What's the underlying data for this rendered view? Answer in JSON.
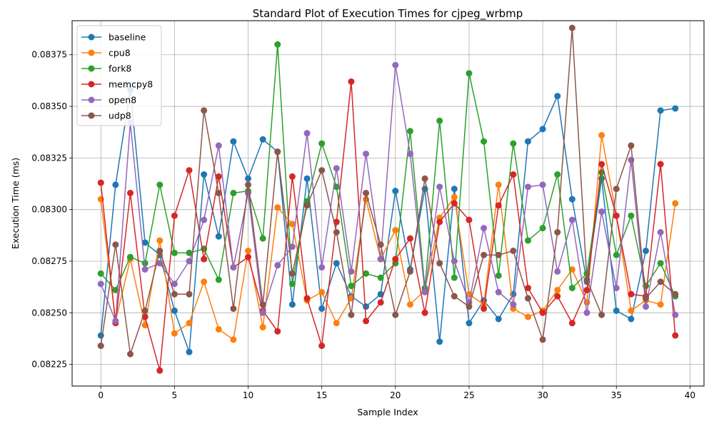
{
  "chart_data": {
    "type": "line",
    "title": "Standard Plot of Execution Times for cjpeg_wrbmp",
    "xlabel": "Sample Index",
    "ylabel": "Execution Time (ms)",
    "xlim": [
      -1.95,
      40.95
    ],
    "ylim": [
      0.082145,
      0.083915
    ],
    "x_ticks": [
      0,
      5,
      10,
      15,
      20,
      25,
      30,
      35,
      40
    ],
    "y_ticks": [
      0.08225,
      0.0825,
      0.08275,
      0.083,
      0.08325,
      0.0835,
      0.08375
    ],
    "y_tick_labels": [
      "0.08225",
      "0.08250",
      "0.08275",
      "0.08300",
      "0.08325",
      "0.08350",
      "0.08375"
    ],
    "grid": true,
    "legend_position": "top-left",
    "x": [
      0,
      1,
      2,
      3,
      4,
      5,
      6,
      7,
      8,
      9,
      10,
      11,
      12,
      13,
      14,
      15,
      16,
      17,
      18,
      19,
      20,
      21,
      22,
      23,
      24,
      25,
      26,
      27,
      28,
      29,
      30,
      31,
      32,
      33,
      34,
      35,
      36,
      37,
      38,
      39
    ],
    "series": [
      {
        "name": "baseline",
        "color": "#1f77b4",
        "values": [
          0.08239,
          0.08312,
          0.08358,
          0.08284,
          0.08278,
          0.08251,
          0.08231,
          0.08317,
          0.08287,
          0.08333,
          0.08315,
          0.08334,
          0.08328,
          0.08254,
          0.08315,
          0.08252,
          0.08274,
          0.08258,
          0.08253,
          0.08259,
          0.08309,
          0.08271,
          0.0831,
          0.08236,
          0.0831,
          0.08245,
          0.08256,
          0.08247,
          0.08259,
          0.08333,
          0.08339,
          0.08355,
          0.08305,
          0.08265,
          0.08315,
          0.08251,
          0.08247,
          0.0828,
          0.08348,
          0.08349
        ]
      },
      {
        "name": "cpu8",
        "color": "#ff7f0e",
        "values": [
          0.08305,
          0.08246,
          0.08276,
          0.08244,
          0.08285,
          0.0824,
          0.08245,
          0.08265,
          0.08242,
          0.08237,
          0.0828,
          0.08243,
          0.08301,
          0.08293,
          0.08256,
          0.0826,
          0.08245,
          0.08257,
          0.08305,
          0.08276,
          0.0829,
          0.08254,
          0.08261,
          0.08296,
          0.08306,
          0.08259,
          0.08254,
          0.08312,
          0.08252,
          0.08248,
          0.08251,
          0.08261,
          0.08271,
          0.08255,
          0.08336,
          0.08297,
          0.08251,
          0.08256,
          0.08254,
          0.08303
        ]
      },
      {
        "name": "fork8",
        "color": "#2ca02c",
        "values": [
          0.08269,
          0.08261,
          0.08277,
          0.08274,
          0.08312,
          0.08279,
          0.08279,
          0.08281,
          0.08266,
          0.08308,
          0.08309,
          0.08286,
          0.0838,
          0.08264,
          0.08304,
          0.08332,
          0.08311,
          0.08263,
          0.08269,
          0.08267,
          0.08274,
          0.08338,
          0.08262,
          0.08343,
          0.08267,
          0.08366,
          0.08333,
          0.08268,
          0.08332,
          0.08285,
          0.08291,
          0.08317,
          0.08262,
          0.08269,
          0.08318,
          0.08278,
          0.08297,
          0.08263,
          0.08274,
          0.08258
        ]
      },
      {
        "name": "memcpy8",
        "color": "#d62728",
        "values": [
          0.08313,
          0.08245,
          0.08308,
          0.08248,
          0.08222,
          0.08297,
          0.08319,
          0.08276,
          0.08316,
          0.08272,
          0.08277,
          0.08251,
          0.08241,
          0.08316,
          0.08257,
          0.08234,
          0.08294,
          0.08362,
          0.08246,
          0.08255,
          0.08276,
          0.08286,
          0.0825,
          0.08294,
          0.08303,
          0.08295,
          0.08252,
          0.08302,
          0.08317,
          0.08262,
          0.0825,
          0.08258,
          0.08245,
          0.08261,
          0.08322,
          0.08297,
          0.08259,
          0.08258,
          0.08322,
          0.08239
        ]
      },
      {
        "name": "open8",
        "color": "#9467bd",
        "values": [
          0.08264,
          0.08246,
          0.08342,
          0.08271,
          0.08274,
          0.08264,
          0.08275,
          0.08295,
          0.08331,
          0.08272,
          0.08308,
          0.0825,
          0.08273,
          0.08282,
          0.08337,
          0.08272,
          0.0832,
          0.0827,
          0.08327,
          0.08276,
          0.0837,
          0.08327,
          0.0826,
          0.08311,
          0.08275,
          0.08255,
          0.08291,
          0.0826,
          0.08254,
          0.08311,
          0.08312,
          0.0827,
          0.08295,
          0.0825,
          0.08299,
          0.08262,
          0.08324,
          0.08253,
          0.08289,
          0.08249
        ]
      },
      {
        "name": "udp8",
        "color": "#8c564b",
        "values": [
          0.08234,
          0.08283,
          0.0823,
          0.08251,
          0.0828,
          0.08259,
          0.08259,
          0.08348,
          0.08308,
          0.08252,
          0.08312,
          0.08254,
          0.08328,
          0.08269,
          0.08302,
          0.08319,
          0.08289,
          0.08249,
          0.08308,
          0.08283,
          0.08249,
          0.0827,
          0.08315,
          0.08274,
          0.08258,
          0.08253,
          0.08278,
          0.08278,
          0.0828,
          0.08257,
          0.08237,
          0.08289,
          0.08388,
          0.08266,
          0.08249,
          0.0831,
          0.08331,
          0.08257,
          0.08265,
          0.08259
        ]
      }
    ]
  }
}
